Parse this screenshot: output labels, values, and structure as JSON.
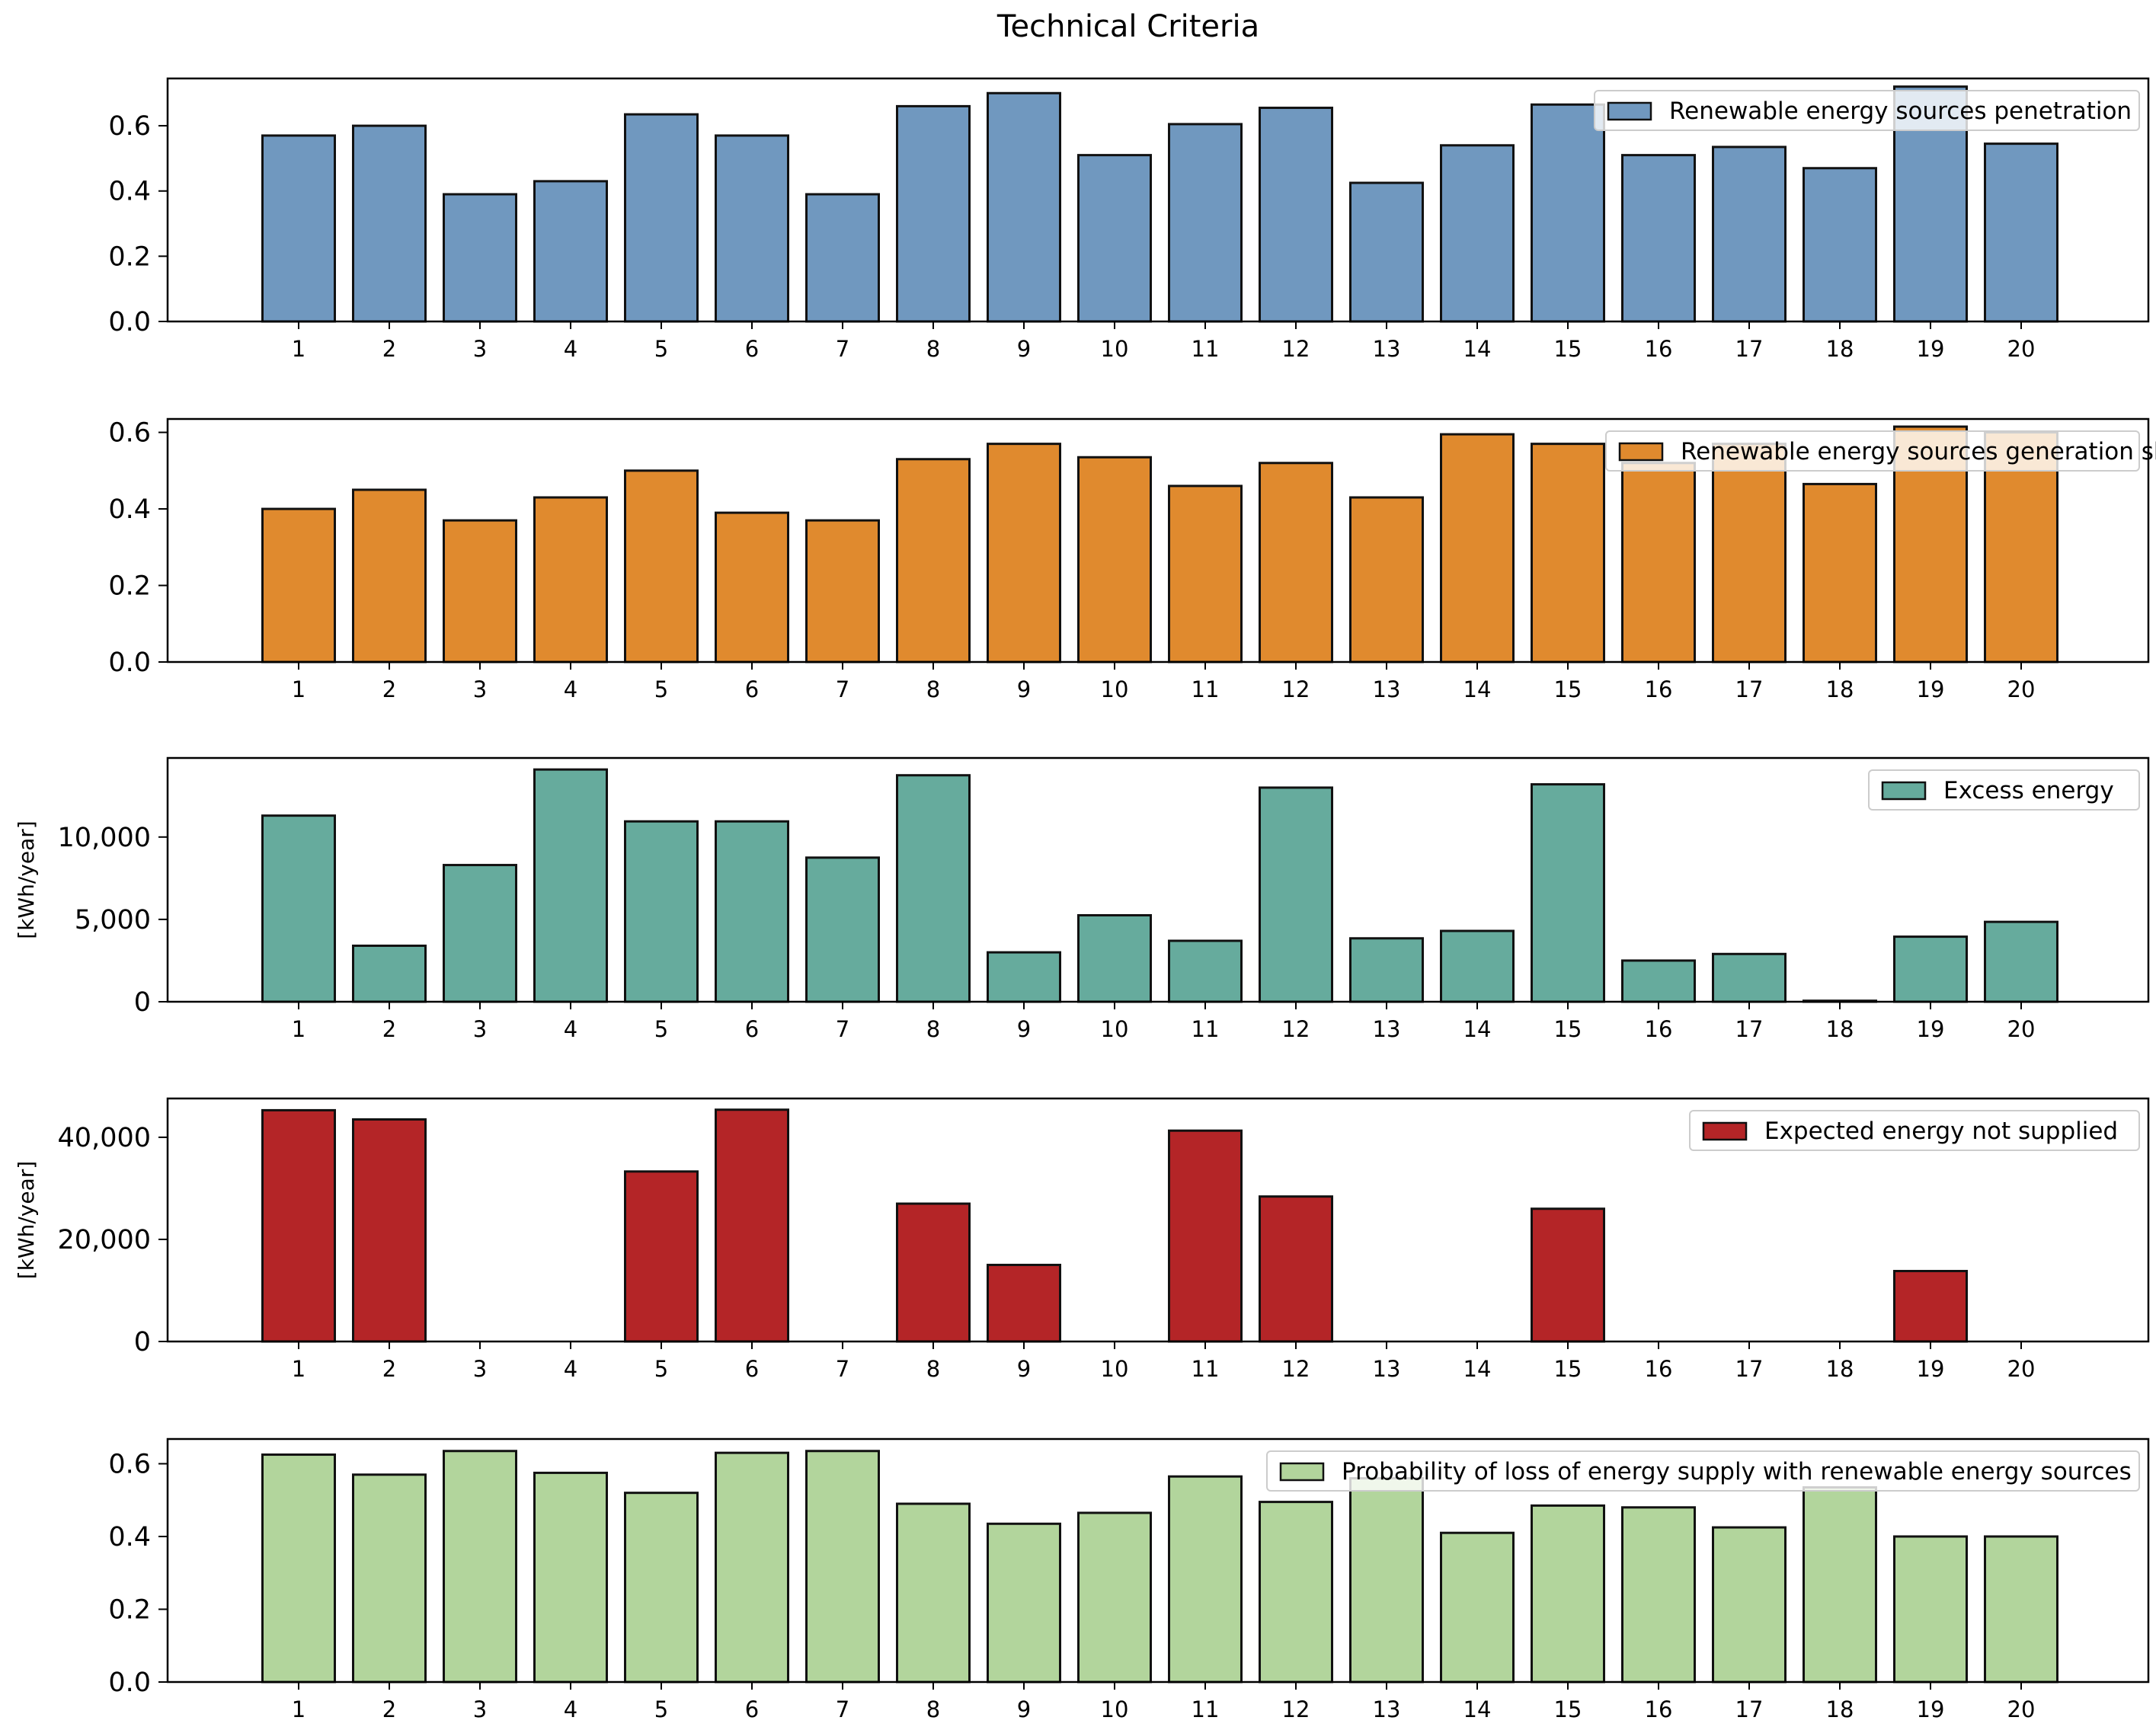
{
  "figure_title": "Technical Criteria",
  "colors": {
    "penetration": "#7098bf",
    "generation_share": "#e08a2e",
    "excess": "#66ab9d",
    "eens": "#b42527",
    "lpsp": "#b2d59c",
    "edge": "#111111"
  },
  "chart_data": [
    {
      "type": "bar",
      "title": "",
      "legend": "Renewable energy sources penetration",
      "legend_position": "top-right",
      "xlabel": "",
      "ylabel": "",
      "categories": [
        "1",
        "2",
        "3",
        "4",
        "5",
        "6",
        "7",
        "8",
        "9",
        "10",
        "11",
        "12",
        "13",
        "14",
        "15",
        "16",
        "17",
        "18",
        "19",
        "20"
      ],
      "values": [
        0.57,
        0.6,
        0.39,
        0.43,
        0.635,
        0.57,
        0.39,
        0.66,
        0.7,
        0.51,
        0.605,
        0.655,
        0.425,
        0.54,
        0.665,
        0.51,
        0.535,
        0.47,
        0.72,
        0.545
      ],
      "ylim": [
        0,
        0.745
      ],
      "yticks": [
        0,
        0.2,
        0.4,
        0.6
      ],
      "ytick_labels": [
        "0.0",
        "0.2",
        "0.4",
        "0.6"
      ],
      "color_key": "penetration"
    },
    {
      "type": "bar",
      "title": "",
      "legend": "Renewable energy sources generation share",
      "legend_position": "top-right",
      "xlabel": "",
      "ylabel": "",
      "categories": [
        "1",
        "2",
        "3",
        "4",
        "5",
        "6",
        "7",
        "8",
        "9",
        "10",
        "11",
        "12",
        "13",
        "14",
        "15",
        "16",
        "17",
        "18",
        "19",
        "20"
      ],
      "values": [
        0.4,
        0.45,
        0.37,
        0.43,
        0.5,
        0.39,
        0.37,
        0.53,
        0.57,
        0.535,
        0.46,
        0.52,
        0.43,
        0.595,
        0.57,
        0.52,
        0.57,
        0.465,
        0.615,
        0.6
      ],
      "ylim": [
        0,
        0.635
      ],
      "yticks": [
        0,
        0.2,
        0.4,
        0.6
      ],
      "ytick_labels": [
        "0.0",
        "0.2",
        "0.4",
        "0.6"
      ],
      "color_key": "generation_share"
    },
    {
      "type": "bar",
      "title": "",
      "legend": "Excess energy",
      "legend_position": "top-right",
      "xlabel": "",
      "ylabel": "[kWh/year]",
      "categories": [
        "1",
        "2",
        "3",
        "4",
        "5",
        "6",
        "7",
        "8",
        "9",
        "10",
        "11",
        "12",
        "13",
        "14",
        "15",
        "16",
        "17",
        "18",
        "19",
        "20"
      ],
      "values": [
        11300,
        3400,
        8300,
        14100,
        10950,
        10950,
        8750,
        13750,
        3000,
        5250,
        3700,
        13000,
        3850,
        4300,
        13200,
        2500,
        2900,
        60,
        3950,
        4850
      ],
      "ylim": [
        0,
        14800
      ],
      "yticks": [
        0,
        5000,
        10000
      ],
      "ytick_labels": [
        "0",
        "5,000",
        "10,000"
      ],
      "color_key": "excess"
    },
    {
      "type": "bar",
      "title": "",
      "legend": "Expected energy not supplied",
      "legend_position": "top-right",
      "xlabel": "",
      "ylabel": "[kWh/year]",
      "categories": [
        "1",
        "2",
        "3",
        "4",
        "5",
        "6",
        "7",
        "8",
        "9",
        "10",
        "11",
        "12",
        "13",
        "14",
        "15",
        "16",
        "17",
        "18",
        "19",
        "20"
      ],
      "values": [
        45300,
        43500,
        0,
        0,
        33300,
        45400,
        0,
        27000,
        15000,
        0,
        41300,
        28400,
        0,
        0,
        26000,
        0,
        0,
        0,
        13800,
        0
      ],
      "ylim": [
        0,
        47600
      ],
      "yticks": [
        0,
        20000,
        40000
      ],
      "ytick_labels": [
        "0",
        "20,000",
        "40,000"
      ],
      "color_key": "eens"
    },
    {
      "type": "bar",
      "title": "",
      "legend": "Probability of loss of energy supply with renewable energy sources",
      "legend_position": "top-right",
      "xlabel": "",
      "ylabel": "",
      "categories": [
        "1",
        "2",
        "3",
        "4",
        "5",
        "6",
        "7",
        "8",
        "9",
        "10",
        "11",
        "12",
        "13",
        "14",
        "15",
        "16",
        "17",
        "18",
        "19",
        "20"
      ],
      "values": [
        0.625,
        0.57,
        0.635,
        0.575,
        0.52,
        0.63,
        0.635,
        0.49,
        0.435,
        0.465,
        0.565,
        0.495,
        0.56,
        0.41,
        0.485,
        0.48,
        0.425,
        0.535,
        0.4,
        0.4
      ],
      "ylim": [
        0,
        0.668
      ],
      "yticks": [
        0,
        0.2,
        0.4,
        0.6
      ],
      "ytick_labels": [
        "0.0",
        "0.2",
        "0.4",
        "0.6"
      ],
      "color_key": "lpsp"
    }
  ]
}
